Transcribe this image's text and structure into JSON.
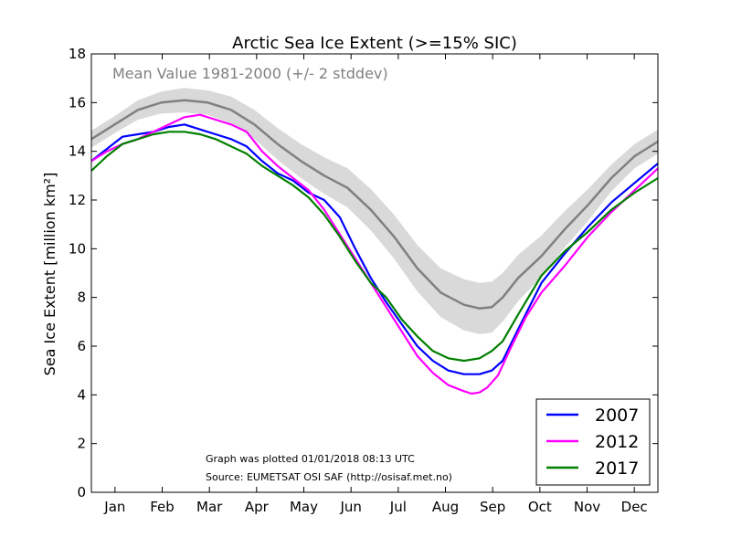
{
  "chart_data": {
    "type": "line",
    "title": "Arctic Sea Ice Extent (>=15% SIC)",
    "ylabel": "Sea Ice Extent [million km²]",
    "xlabel": "",
    "ylim": [
      0,
      18
    ],
    "xlim": [
      0,
      365
    ],
    "grid": false,
    "legend_position": "bottom-right",
    "months": [
      "Jan",
      "Feb",
      "Mar",
      "Apr",
      "May",
      "Jun",
      "Jul",
      "Aug",
      "Sep",
      "Oct",
      "Nov",
      "Dec"
    ],
    "y_ticks": [
      0,
      2,
      4,
      6,
      8,
      10,
      12,
      14,
      16,
      18
    ],
    "mean_label": "Mean Value 1981-2000 (+/- 2 stddev)",
    "mean": {
      "color": "#808080",
      "band_color": "#d9d9d9",
      "x": [
        0,
        15,
        30,
        45,
        60,
        75,
        90,
        105,
        120,
        135,
        150,
        165,
        180,
        195,
        210,
        225,
        240,
        250,
        258,
        265,
        275,
        290,
        305,
        320,
        335,
        350,
        365
      ],
      "values": [
        14.5,
        15.1,
        15.7,
        16.0,
        16.1,
        16.0,
        15.7,
        15.1,
        14.3,
        13.6,
        13.0,
        12.5,
        11.6,
        10.5,
        9.2,
        8.2,
        7.7,
        7.55,
        7.6,
        8.0,
        8.8,
        9.7,
        10.8,
        11.8,
        12.9,
        13.8,
        14.4
      ],
      "std2": [
        0.35,
        0.35,
        0.4,
        0.45,
        0.5,
        0.5,
        0.55,
        0.6,
        0.65,
        0.7,
        0.75,
        0.8,
        0.85,
        0.9,
        0.95,
        1.0,
        1.05,
        1.05,
        1.05,
        1.0,
        0.95,
        0.85,
        0.75,
        0.65,
        0.55,
        0.5,
        0.5
      ]
    },
    "series": [
      {
        "name": "2007",
        "color": "#0000ff",
        "x": [
          0,
          10,
          20,
          30,
          40,
          50,
          60,
          70,
          80,
          90,
          100,
          110,
          120,
          130,
          140,
          150,
          160,
          170,
          180,
          190,
          200,
          210,
          220,
          230,
          240,
          250,
          258,
          265,
          275,
          290,
          305,
          320,
          335,
          350,
          365
        ],
        "values": [
          13.6,
          14.1,
          14.6,
          14.7,
          14.8,
          15.0,
          15.1,
          14.9,
          14.7,
          14.5,
          14.2,
          13.6,
          13.1,
          12.8,
          12.3,
          12.0,
          11.3,
          10.0,
          8.8,
          7.8,
          6.9,
          6.0,
          5.4,
          5.0,
          4.85,
          4.85,
          5.0,
          5.4,
          6.7,
          8.6,
          9.8,
          10.9,
          11.9,
          12.7,
          13.5
        ]
      },
      {
        "name": "2012",
        "color": "#ff00ff",
        "x": [
          0,
          10,
          20,
          30,
          40,
          50,
          60,
          70,
          80,
          90,
          100,
          110,
          120,
          130,
          140,
          150,
          160,
          170,
          180,
          190,
          200,
          210,
          220,
          230,
          240,
          245,
          250,
          255,
          262,
          270,
          280,
          290,
          305,
          320,
          335,
          350,
          365
        ],
        "values": [
          13.6,
          14.0,
          14.3,
          14.5,
          14.8,
          15.1,
          15.4,
          15.5,
          15.3,
          15.1,
          14.8,
          14.0,
          13.4,
          12.9,
          12.4,
          11.6,
          10.6,
          9.6,
          8.6,
          7.6,
          6.6,
          5.6,
          4.9,
          4.4,
          4.15,
          4.05,
          4.1,
          4.3,
          4.8,
          5.9,
          7.2,
          8.2,
          9.3,
          10.5,
          11.5,
          12.4,
          13.3
        ]
      },
      {
        "name": "2017",
        "color": "#007f00",
        "x": [
          0,
          10,
          20,
          30,
          40,
          50,
          60,
          70,
          80,
          90,
          100,
          110,
          120,
          130,
          140,
          150,
          160,
          170,
          180,
          190,
          200,
          210,
          220,
          230,
          240,
          250,
          258,
          265,
          275,
          290,
          305,
          320,
          335,
          350,
          365
        ],
        "values": [
          13.2,
          13.8,
          14.3,
          14.5,
          14.7,
          14.8,
          14.8,
          14.7,
          14.5,
          14.2,
          13.9,
          13.4,
          13.0,
          12.6,
          12.1,
          11.4,
          10.5,
          9.5,
          8.6,
          8.0,
          7.1,
          6.4,
          5.8,
          5.5,
          5.4,
          5.5,
          5.8,
          6.2,
          7.3,
          8.9,
          9.9,
          10.7,
          11.6,
          12.3,
          12.9
        ]
      }
    ],
    "annotations": [
      "Graph was plotted 01/01/2018 08:13 UTC",
      "Source: EUMETSAT OSI SAF (http://osisaf.met.no)"
    ]
  }
}
